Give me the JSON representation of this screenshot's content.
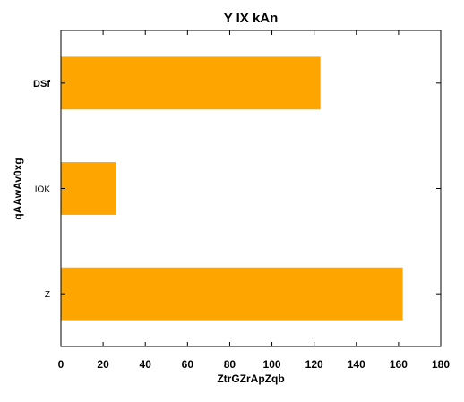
{
  "chart_data": {
    "type": "bar",
    "orientation": "horizontal",
    "title": "Y IX kAn",
    "xlabel": "ZtrGZrApZqb",
    "ylabel": "qAAwAv0xg",
    "categories": [
      "DSf",
      "IOK",
      "Z"
    ],
    "category_bold": [
      true,
      false,
      false
    ],
    "values": [
      123,
      26,
      162
    ],
    "xlim": [
      0,
      180
    ],
    "xticks": [
      0,
      20,
      40,
      60,
      80,
      100,
      120,
      140,
      160,
      180
    ],
    "bar_color": "#FFA500",
    "grid": false,
    "legend": "none"
  }
}
